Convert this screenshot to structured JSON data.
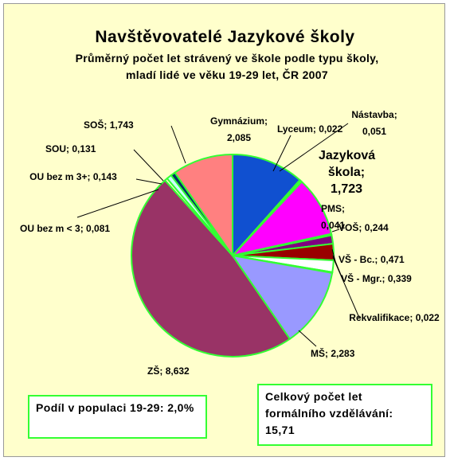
{
  "chart_data": {
    "type": "pie",
    "title": "Navštěvovatelé Jazykové školy",
    "subtitle": "Průměrný počet let strávený ve škole podle typu školy, mladí lidé ve věku 19-29 let, ČR 2007",
    "categories": [
      "Gymnázium",
      "Lyceum",
      "Nástavba",
      "Jazyková škola",
      "PMS",
      "VOŠ",
      "VŠ - Bc.",
      "VŠ - Mgr.",
      "Rekvalifikace",
      "MŠ",
      "ZŠ",
      "OU bez m < 3",
      "OU bez m 3+",
      "SOU",
      "SOŠ"
    ],
    "values": [
      2.085,
      0.022,
      0.051,
      1.723,
      0.041,
      0.244,
      0.471,
      0.339,
      0.022,
      2.283,
      8.632,
      0.081,
      0.143,
      0.131,
      1.743
    ],
    "value_labels": [
      "2,085",
      "0,022",
      "0,051",
      "1,723",
      "0,041",
      "0,244",
      "0,471",
      "0,339",
      "0,022",
      "2,283",
      "8,632",
      "0,081",
      "0,143",
      "0,131",
      "1,743"
    ],
    "colors": [
      "#1050d0",
      "#333366",
      "#ccffcc",
      "#ff00ff",
      "#33cccc",
      "#800080",
      "#990000",
      "#ffffff",
      "#ccccff",
      "#9999ff",
      "#993366",
      "#ffffcc",
      "#ccffff",
      "#003366",
      "#ff8080"
    ],
    "annotations": [
      "Podíl v populaci 19-29: 2,0%",
      "Celkový počet let formálního vzdělávání: 15,71"
    ]
  }
}
